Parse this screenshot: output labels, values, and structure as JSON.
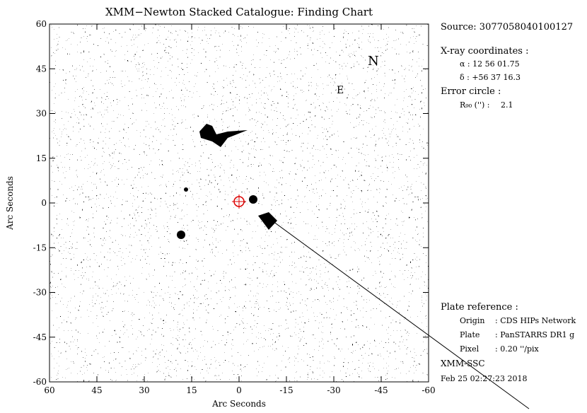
{
  "chart_data": {
    "type": "image",
    "title": "XMM−Newton Stacked Catalogue: Finding Chart",
    "x_label": "Arc Seconds",
    "y_label": "Arc Seconds",
    "xlim": [
      60,
      -60
    ],
    "ylim": [
      -60,
      60
    ],
    "xticks": [
      60,
      45,
      30,
      15,
      0,
      -15,
      -30,
      -45,
      -60
    ],
    "yticks": [
      -60,
      -45,
      -30,
      -15,
      0,
      15,
      30,
      45,
      60
    ],
    "compass": [
      "N",
      "E"
    ]
  },
  "info_panel": {
    "source": "Source: 3077058040100127",
    "xray_heading": "X-ray coordinates :",
    "alpha": "α :   12 56 01.75",
    "delta": "δ :  +56 37 16.3",
    "error_heading": "Error circle :",
    "r90_label": "R₉₀ ('') :",
    "r90_value": "2.1",
    "plate_heading": "Plate reference :",
    "rows": [
      [
        "Origin",
        ": CDS HIPs Network"
      ],
      [
        "Plate",
        ": PanSTARRS DR1 g"
      ],
      [
        "Pixel",
        ": 0.20 ''/pix"
      ]
    ],
    "footer": "XMM-SSC",
    "date": "Feb 25 02:27:23 2018"
  }
}
